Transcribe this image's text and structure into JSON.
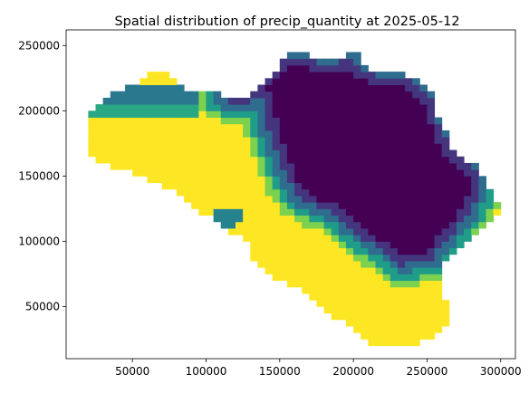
{
  "chart_data": {
    "type": "heatmap",
    "title": "Spatial distribution of precip_quantity at 2025-05-12",
    "xlabel": "",
    "ylabel": "",
    "xlim": [
      5000,
      310000
    ],
    "ylim": [
      10000,
      262000
    ],
    "x_ticks": [
      50000,
      100000,
      150000,
      200000,
      250000,
      300000
    ],
    "x_tick_labels": [
      "50000",
      "100000",
      "150000",
      "200000",
      "250000",
      "300000"
    ],
    "y_ticks": [
      50000,
      100000,
      150000,
      200000,
      250000
    ],
    "y_tick_labels": [
      "50000",
      "100000",
      "150000",
      "200000",
      "250000"
    ],
    "grid": false,
    "colormap": "viridis",
    "cell_size": 5000,
    "value_scale": [
      0,
      1
    ],
    "colors": {
      "low": "#440154",
      "high": "#fde725"
    }
  }
}
